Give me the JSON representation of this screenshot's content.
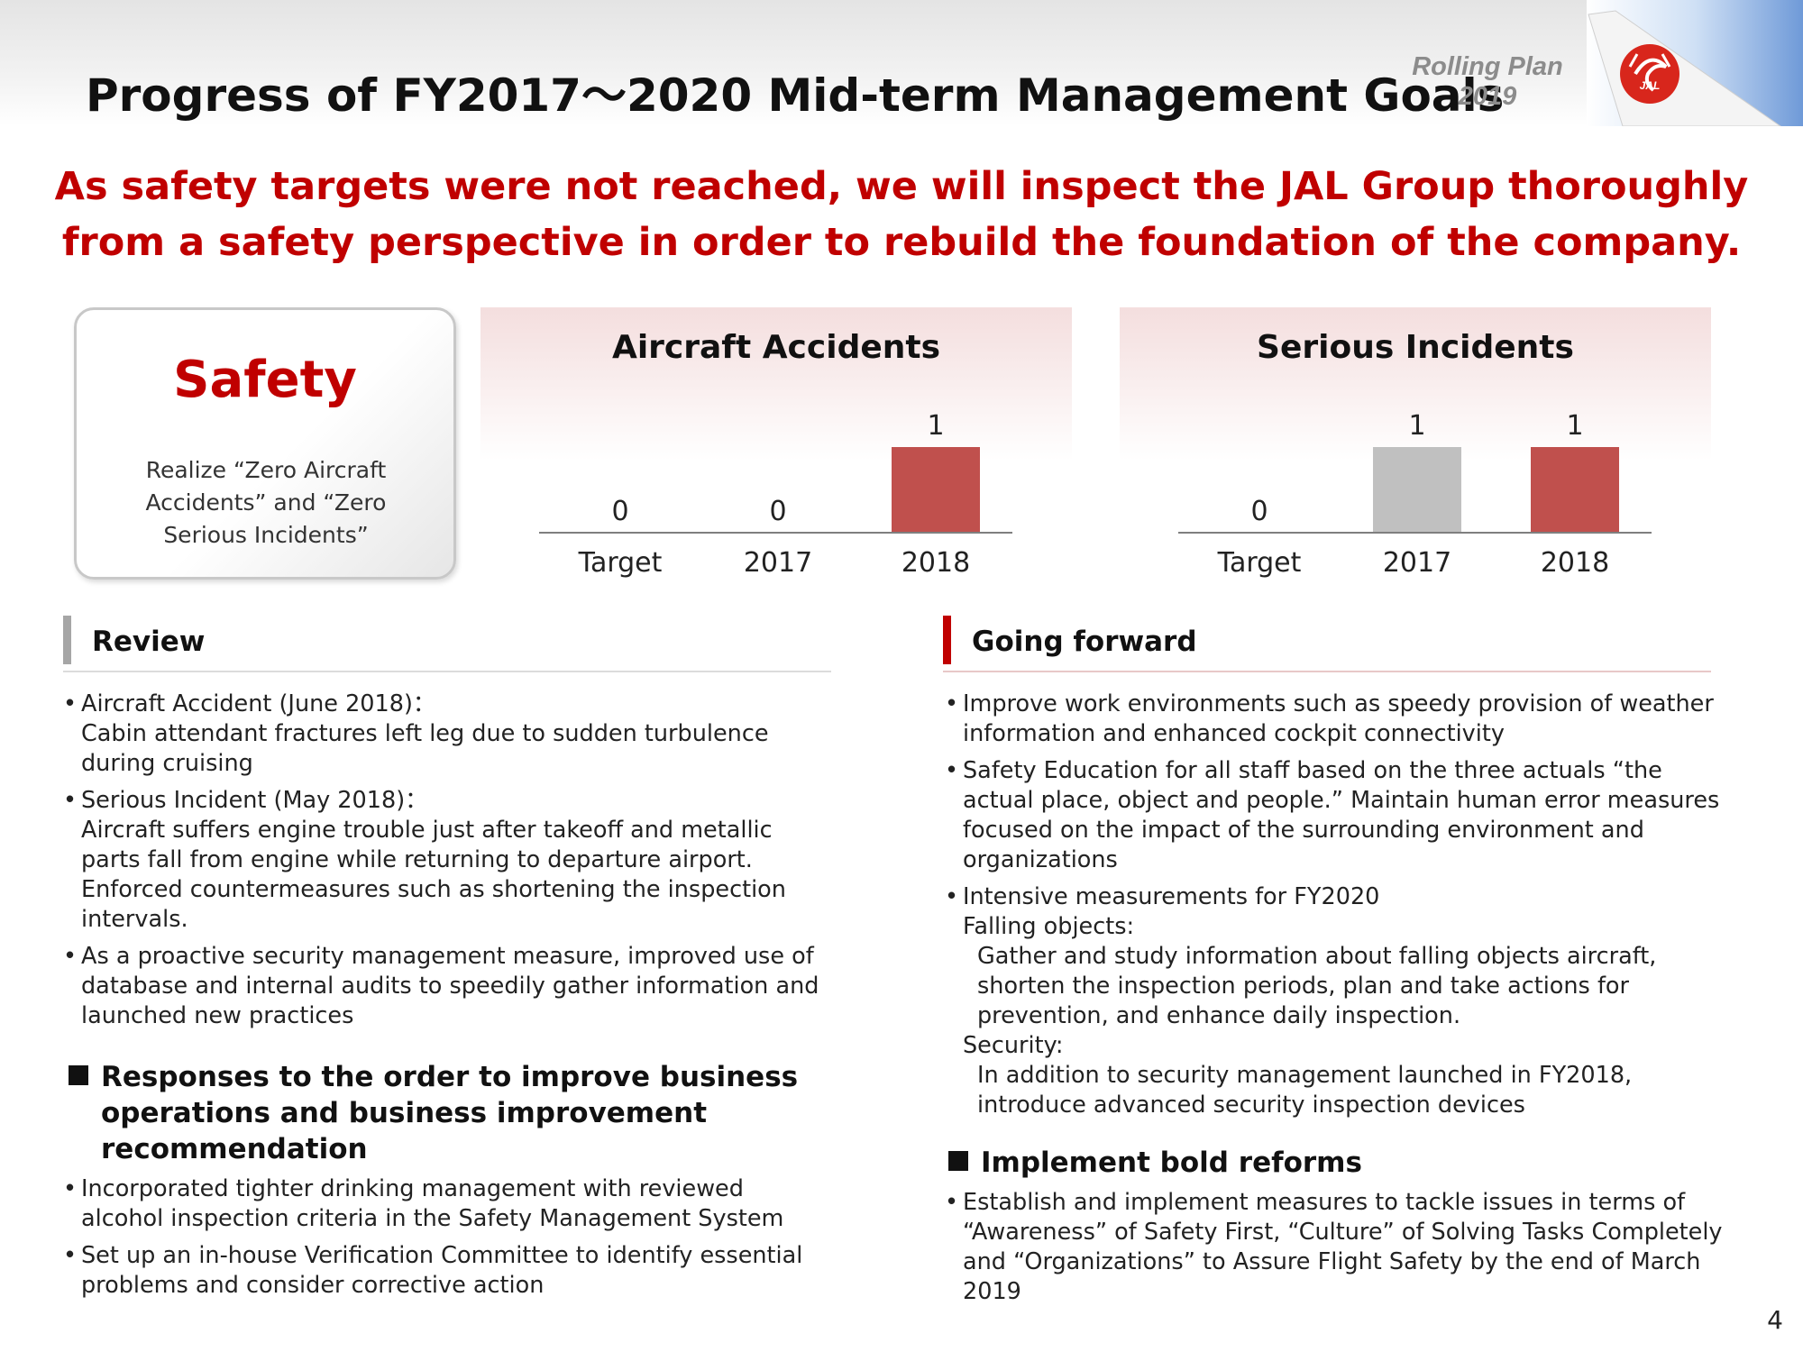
{
  "header": {
    "title": "Progress of FY2017～2020  Mid-term Management Goals",
    "rolling_line1": "Rolling Plan",
    "rolling_line2": "2019",
    "logo_text": "JAL"
  },
  "headline": {
    "line1": "As safety targets were not reached, we will inspect the JAL Group thoroughly",
    "line2": "from a safety perspective in order to rebuild the foundation of the company."
  },
  "safety": {
    "title": "Safety",
    "desc": "Realize “Zero Aircraft Accidents” and “Zero Serious Incidents”"
  },
  "colors": {
    "accent_red": "#c00000",
    "bar_red": "#c0504d",
    "bar_gray": "#c0c0c0"
  },
  "chart_data": [
    {
      "type": "bar",
      "title": "Aircraft Accidents",
      "categories": [
        "Target",
        "2017",
        "2018"
      ],
      "values": [
        0,
        0,
        1
      ],
      "bar_colors": [
        "none",
        "none",
        "#c0504d"
      ],
      "ylim": [
        0,
        1
      ],
      "grid": false,
      "legend": "none"
    },
    {
      "type": "bar",
      "title": "Serious Incidents",
      "categories": [
        "Target",
        "2017",
        "2018"
      ],
      "values": [
        0,
        1,
        1
      ],
      "bar_colors": [
        "none",
        "#c0c0c0",
        "#c0504d"
      ],
      "ylim": [
        0,
        1
      ],
      "grid": false,
      "legend": "none"
    }
  ],
  "review": {
    "heading": "Review",
    "items": [
      {
        "head": "Aircraft Accident (June 2018)：",
        "body": "Cabin attendant fractures left leg due to sudden turbulence during cruising"
      },
      {
        "head": "Serious Incident (May 2018)：",
        "body": "Aircraft suffers engine trouble just after takeoff and metallic parts fall from engine while returning to departure airport. Enforced countermeasures such as shortening the inspection intervals."
      },
      {
        "head": "",
        "body": "As a proactive security management measure, improved use of database and internal audits to speedily gather information and launched new practices"
      }
    ],
    "responses_heading": "Responses to the order to improve business operations and business improvement recommendation",
    "responses_items": [
      "Incorporated tighter drinking management with reviewed alcohol inspection criteria in the Safety Management System",
      "Set up an in-house Verification Committee to identify essential problems and consider corrective action"
    ]
  },
  "going_forward": {
    "heading": "Going forward",
    "item1": "Improve work environments such as speedy provision of weather information and enhanced cockpit connectivity",
    "item2": "Safety Education for all staff based on the three actuals “the actual place, object and people.” Maintain human error measures focused on the impact of the surrounding environment and organizations",
    "item3_head": "Intensive measurements for FY2020",
    "falling_label": "Falling objects:",
    "falling_text": "Gather and study information about falling objects aircraft, shorten the inspection periods, plan and take actions for prevention, and enhance daily inspection.",
    "security_label": "Security:",
    "security_text": "In addition to security management launched in FY2018, introduce advanced security inspection devices",
    "reforms_heading": "Implement bold reforms",
    "reforms_item": "Establish and implement measures to tackle issues in terms of “Awareness” of Safety First, “Culture” of Solving Tasks Completely and “Organizations” to Assure Flight Safety by the end of March 2019"
  },
  "page_number": "4"
}
